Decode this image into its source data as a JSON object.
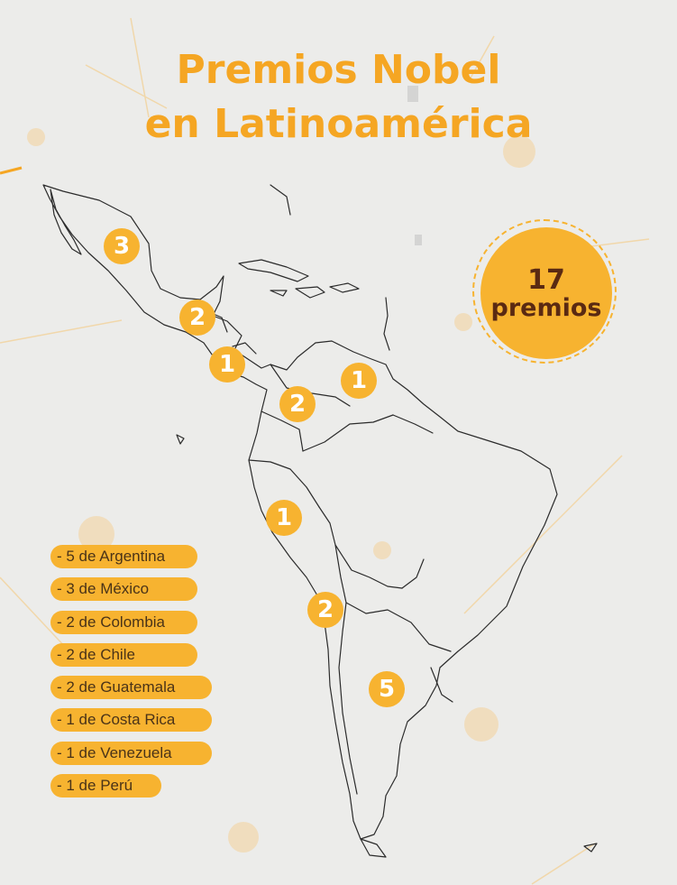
{
  "title": {
    "line1": "Premios Nobel",
    "line2": "en Latinoamérica"
  },
  "total": {
    "number": "17",
    "word": "premios"
  },
  "badges": {
    "mexico": "3",
    "guatemala": "2",
    "costa_rica": "1",
    "venezuela": "1",
    "colombia": "2",
    "peru": "1",
    "chile": "2",
    "argentina": "5"
  },
  "legend": [
    "- 5 de Argentina",
    "- 3 de México",
    "- 2 de Colombia",
    "- 2 de Chile",
    "- 2 de Guatemala",
    "- 1 de Costa Rica",
    "- 1 de Venezuela",
    "- 1 de Perú"
  ],
  "colors": {
    "accent": "#f7b330",
    "title": "#f5a623",
    "total_text": "#5a2a12",
    "legend_text": "#4a3318",
    "background": "#ececea",
    "map_outline": "#2b2b2b"
  }
}
